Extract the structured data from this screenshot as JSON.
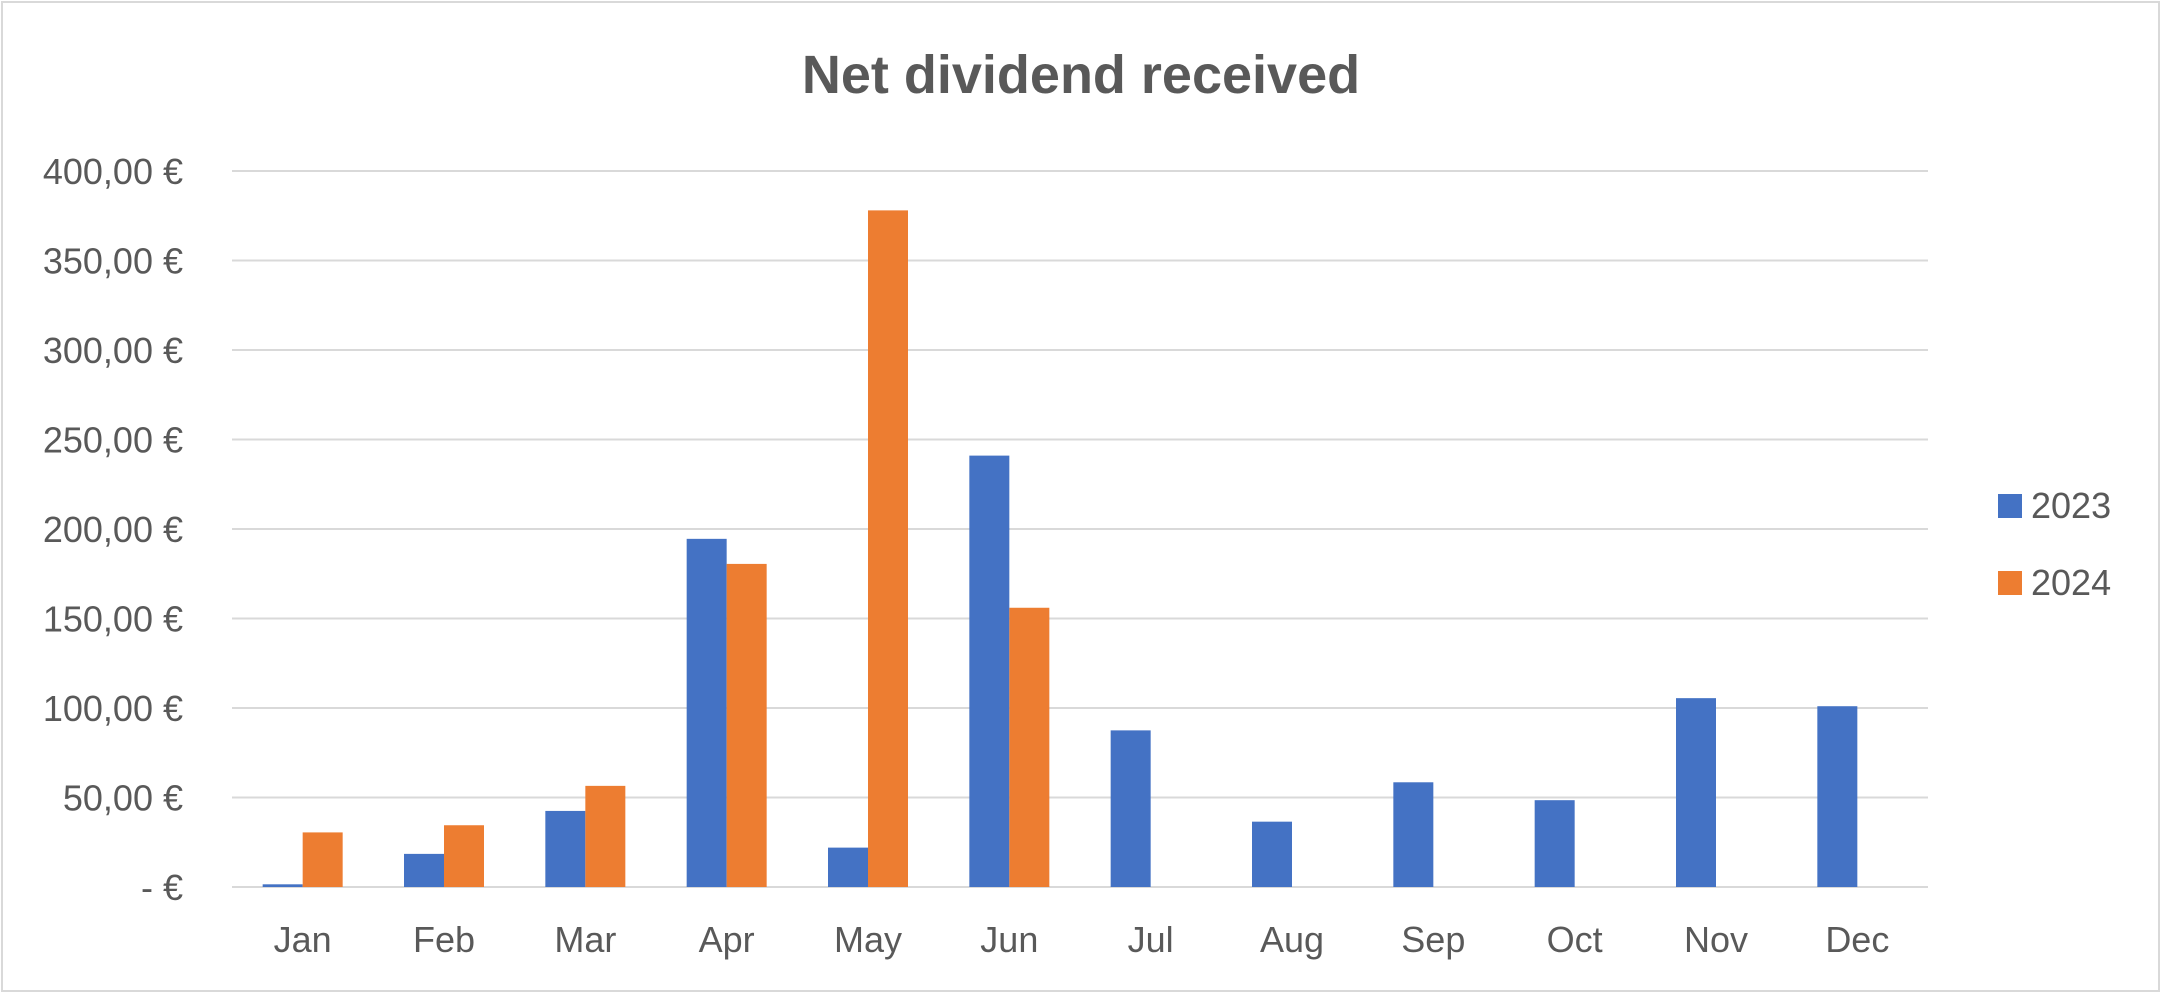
{
  "chart_data": {
    "type": "bar",
    "title": "Net dividend received",
    "xlabel": "",
    "ylabel": "",
    "categories": [
      "Jan",
      "Feb",
      "Mar",
      "Apr",
      "May",
      "Jun",
      "Jul",
      "Aug",
      "Sep",
      "Oct",
      "Nov",
      "Dec"
    ],
    "series": [
      {
        "name": "2023",
        "color": "#4472C4",
        "values": [
          1.5,
          18.5,
          42.5,
          194.5,
          22,
          241,
          87.5,
          36.5,
          58.5,
          48.5,
          105.5,
          101
        ]
      },
      {
        "name": "2024",
        "color": "#ED7D31",
        "values": [
          30.5,
          34.5,
          56.5,
          180.5,
          378,
          156,
          null,
          null,
          null,
          null,
          null,
          null
        ]
      }
    ],
    "ylim": [
      0,
      400
    ],
    "yticks": [
      0,
      50,
      100,
      150,
      200,
      250,
      300,
      350,
      400
    ],
    "ytick_labels": [
      "-  €",
      "50,00 €",
      "100,00 €",
      "150,00 €",
      "200,00 €",
      "250,00 €",
      "300,00 €",
      "350,00 €",
      "400,00 €"
    ],
    "grid": true,
    "legend_position": "right",
    "gridline_color": "#d9d9d9"
  }
}
